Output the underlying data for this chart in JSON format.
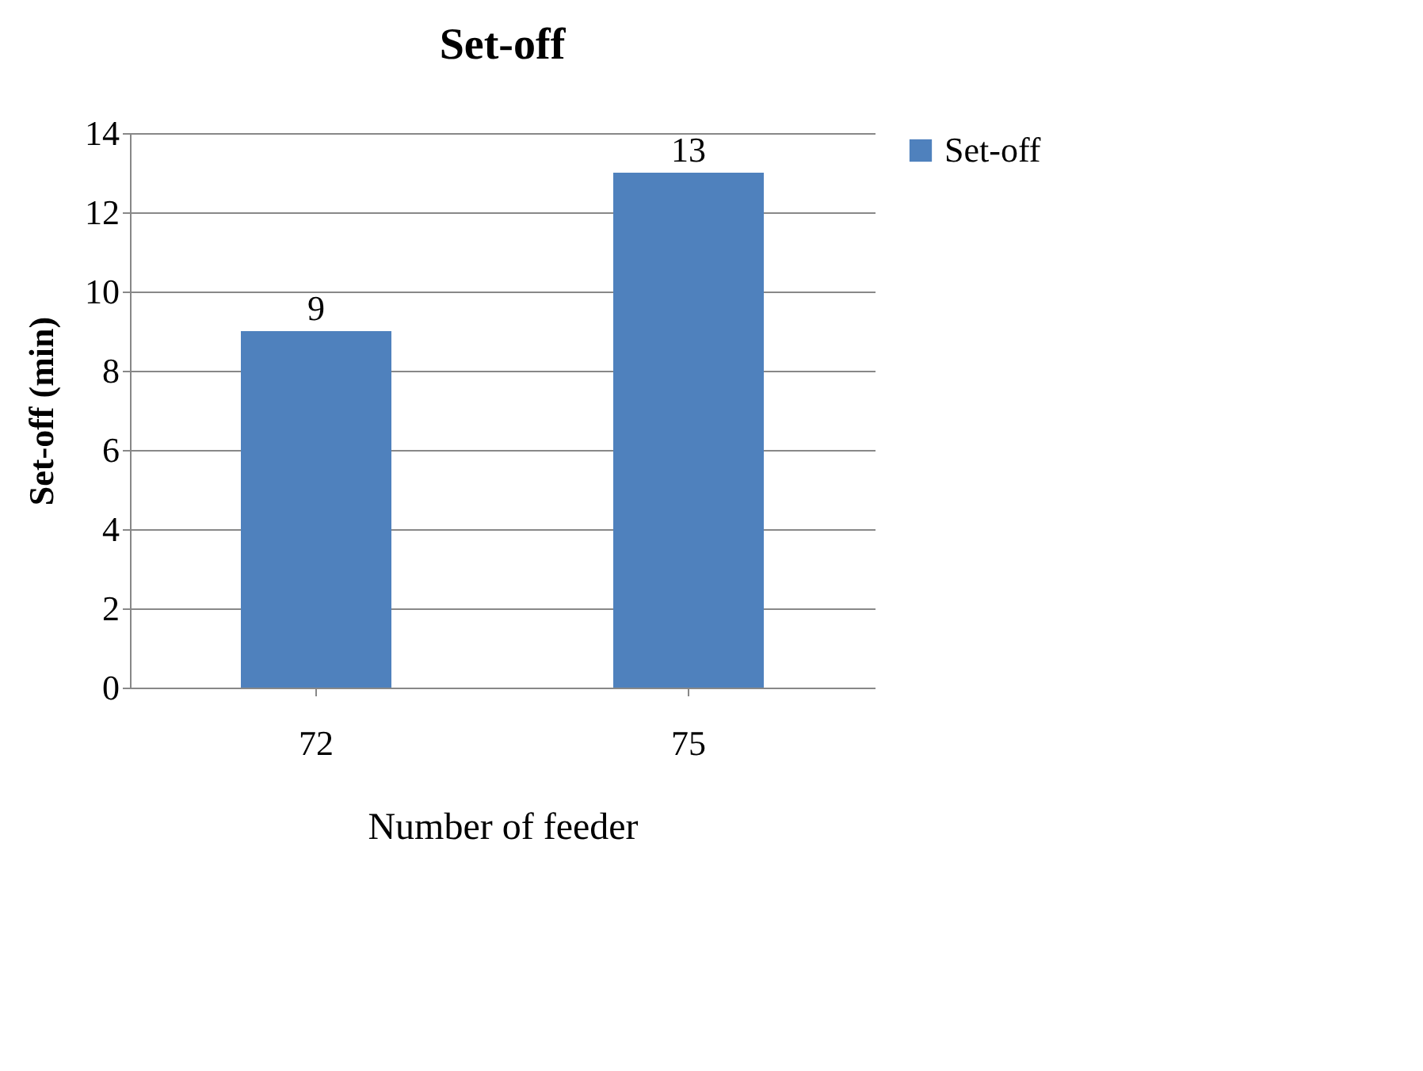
{
  "chart_data": {
    "type": "bar",
    "title": "Set-off",
    "xlabel": "Number of feeder",
    "ylabel": "Set-off (min)",
    "categories": [
      "72",
      "75"
    ],
    "series": [
      {
        "name": "Set-off",
        "color": "#4f81bd",
        "values": [
          9,
          13
        ]
      }
    ],
    "ylim": [
      0,
      14
    ],
    "yticks": [
      0,
      2,
      4,
      6,
      8,
      10,
      12,
      14
    ],
    "grid": "y",
    "legend": "right",
    "data_labels": true
  }
}
